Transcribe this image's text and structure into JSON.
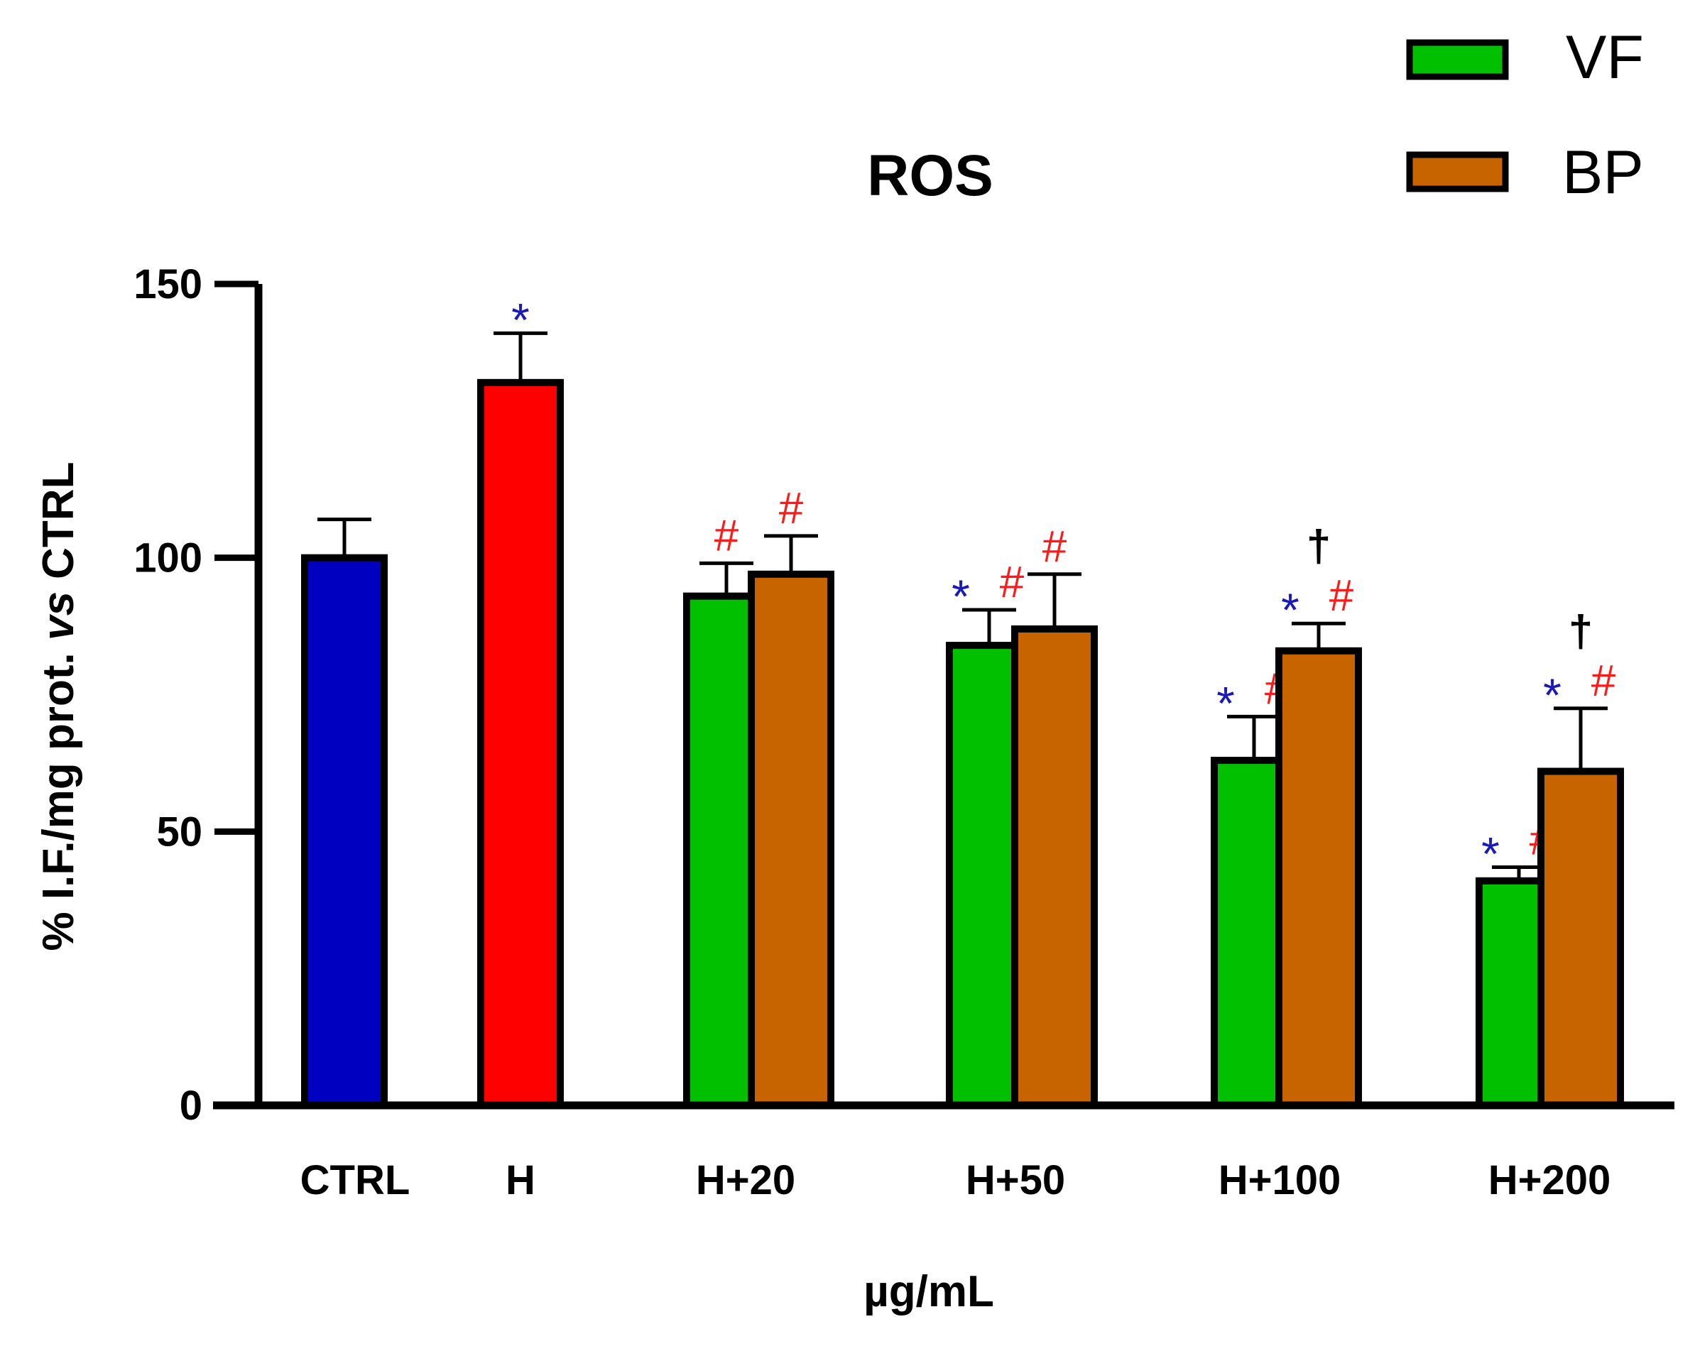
{
  "chart_data": {
    "type": "bar",
    "title": "ROS",
    "xlabel": "µg/mL",
    "ylabel_prefix": "% I.F./mg prot. ",
    "ylabel_italic": "vs",
    "ylabel_suffix": " CTRL",
    "ylim": [
      0,
      150
    ],
    "yticks": [
      0,
      50,
      100,
      150
    ],
    "ytick_labels": [
      "0",
      "50",
      "100",
      "150"
    ],
    "categories": [
      "CTRL",
      "H",
      "H+20",
      "H+50",
      "H+100",
      "H+200"
    ],
    "legend": [
      {
        "name": "VF",
        "color": "#00c000"
      },
      {
        "name": "BP",
        "color": "#c86400"
      }
    ],
    "bars": [
      {
        "category": "CTRL",
        "series": "control",
        "value": 100,
        "error": 7,
        "color": "#0000c0",
        "marks": []
      },
      {
        "category": "H",
        "series": "control",
        "value": 132,
        "error": 9,
        "color": "#ff0000",
        "marks": [
          {
            "text": "*",
            "color": "#1a1ab8"
          }
        ]
      },
      {
        "category": "H+20",
        "series": "VF",
        "value": 93,
        "error": 6,
        "color": "#00c000",
        "marks": [
          {
            "text": "#",
            "color": "#ff1a1a"
          }
        ]
      },
      {
        "category": "H+20",
        "series": "BP",
        "value": 97,
        "error": 7,
        "color": "#c86400",
        "marks": [
          {
            "text": "#",
            "color": "#ff1a1a"
          }
        ]
      },
      {
        "category": "H+50",
        "series": "VF",
        "value": 84,
        "error": 6.5,
        "color": "#00c000",
        "marks": [
          {
            "text": "*",
            "color": "#1a1ab8"
          },
          {
            "text": "#",
            "color": "#ff1a1a"
          }
        ]
      },
      {
        "category": "H+50",
        "series": "BP",
        "value": 87,
        "error": 10,
        "color": "#c86400",
        "marks": [
          {
            "text": "#",
            "color": "#ff1a1a"
          }
        ]
      },
      {
        "category": "H+100",
        "series": "VF",
        "value": 63,
        "error": 8,
        "color": "#00c000",
        "marks": [
          {
            "text": "*",
            "color": "#1a1ab8"
          },
          {
            "text": "#",
            "color": "#ff1a1a"
          }
        ]
      },
      {
        "category": "H+100",
        "series": "BP",
        "value": 83,
        "error": 5,
        "color": "#c86400",
        "marks": [
          {
            "text": "*",
            "color": "#1a1ab8"
          },
          {
            "text": "#",
            "color": "#ff1a1a"
          }
        ],
        "top_mark": {
          "text": "†",
          "color": "#000000"
        }
      },
      {
        "category": "H+200",
        "series": "VF",
        "value": 41,
        "error": 2.5,
        "color": "#00c000",
        "marks": [
          {
            "text": "*",
            "color": "#1a1ab8"
          },
          {
            "text": "#",
            "color": "#ff1a1a"
          }
        ]
      },
      {
        "category": "H+200",
        "series": "BP",
        "value": 61,
        "error": 11.5,
        "color": "#c86400",
        "marks": [
          {
            "text": "*",
            "color": "#1a1ab8"
          },
          {
            "text": "#",
            "color": "#ff1a1a"
          }
        ],
        "top_mark": {
          "text": "†",
          "color": "#000000"
        }
      }
    ]
  }
}
